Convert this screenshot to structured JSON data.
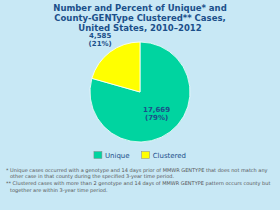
{
  "chart_data": {
    "type": "pie",
    "title": "Number and Percent of Unique* and\nCounty-GENType Clustered** Cases,\nUnited States, 2010–2012",
    "categories": [
      "Unique",
      "Clustered"
    ],
    "values": [
      17669,
      4585
    ],
    "value_labels": [
      "17,669\n(79%)",
      "4,585\n(21%)"
    ],
    "data_labels": true,
    "colors": [
      "#00D4A0",
      "#FFFF00"
    ],
    "legend": "bottom",
    "annotations": [
      "* Unique cases occurred with a genotype and 14 days prior of MMWR GENTYPE that does not match any other case in that county during the specified 3-year time period.",
      "** Clustered cases with more than 2 genotype and 14 days of MMWR GENTYPE pattern occurs county but together are within 3-year time period."
    ]
  }
}
